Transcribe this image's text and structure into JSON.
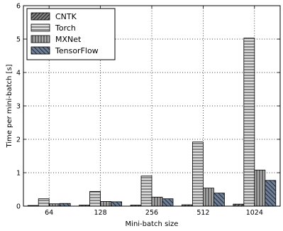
{
  "chart_data": {
    "type": "bar",
    "xlabel": "Mini-batch size",
    "ylabel": "Time per mini-batch [s]",
    "categories": [
      "64",
      "128",
      "256",
      "512",
      "1024"
    ],
    "ylim": [
      0,
      6
    ],
    "yticks": [
      0,
      1,
      2,
      3,
      4,
      5,
      6
    ],
    "grid": true,
    "legend_position": "top-left",
    "series": [
      {
        "name": "CNTK",
        "values": [
          0.02,
          0.03,
          0.03,
          0.04,
          0.06
        ],
        "color": "#7f7f7f",
        "pattern": "diagonal"
      },
      {
        "name": "Torch",
        "values": [
          0.22,
          0.44,
          0.9,
          1.92,
          5.03
        ],
        "color": "#d9d9d9",
        "pattern": "horizontal"
      },
      {
        "name": "MXNet",
        "values": [
          0.07,
          0.14,
          0.27,
          0.54,
          1.08
        ],
        "color": "#a6a6a6",
        "pattern": "vertical"
      },
      {
        "name": "TensorFlow",
        "values": [
          0.08,
          0.13,
          0.22,
          0.39,
          0.77
        ],
        "color": "#6f7f96",
        "pattern": "backdiagonal"
      }
    ]
  }
}
